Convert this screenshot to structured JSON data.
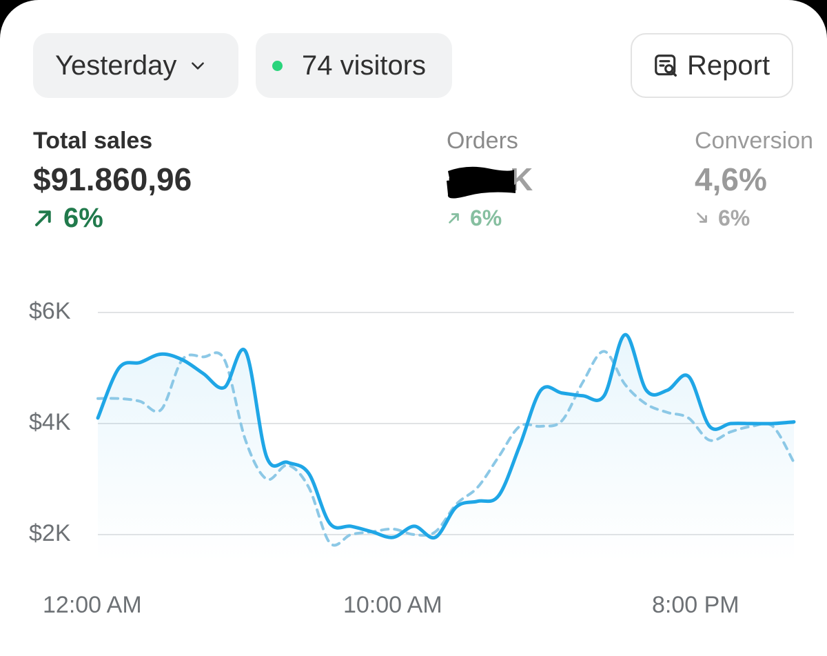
{
  "toolbar": {
    "date_label": "Yesterday",
    "visitors_label": "74 visitors",
    "report_label": "Report"
  },
  "metrics": {
    "total_sales": {
      "label": "Total sales",
      "value": "$91.860,96",
      "delta": "6%",
      "direction": "up"
    },
    "orders": {
      "label": "Orders",
      "value_visible_suffix": "K",
      "value_redacted": true,
      "delta": "6%",
      "direction": "up"
    },
    "conversion": {
      "label": "Conversion",
      "value": "4,6%",
      "delta": "6%",
      "direction": "down"
    }
  },
  "colors": {
    "accent": "#1fa6e6",
    "comparison": "#8cc8e6",
    "positive": "#217a4c",
    "live_dot": "#29d47b"
  },
  "icons": [
    "chevron-down-icon",
    "live-dot-icon",
    "report-icon",
    "arrow-up-right-icon",
    "arrow-down-right-icon"
  ],
  "chart_data": {
    "type": "line",
    "y_tick_labels": [
      "$6K",
      "$4K",
      "$2K"
    ],
    "x_tick_labels": [
      "12:00 AM",
      "10:00 AM",
      "8:00 PM"
    ],
    "ylim": [
      1000,
      6500
    ],
    "grid": true,
    "x_hours": [
      0,
      0.7,
      1.4,
      2.1,
      2.8,
      3.5,
      4.2,
      4.9,
      5.6,
      6.3,
      7.0,
      7.7,
      8.4,
      9.1,
      9.8,
      10.5,
      11.2,
      11.9,
      12.6,
      13.3,
      14.0,
      14.7,
      15.4,
      16.1,
      16.8,
      17.5,
      18.2,
      18.9,
      19.6,
      20.3,
      21.0,
      21.7,
      22.4,
      23.1
    ],
    "series": [
      {
        "values": [
          4100,
          5000,
          5100,
          5250,
          5150,
          4900,
          4650,
          5300,
          3400,
          3300,
          3100,
          2200,
          2150,
          2050,
          1950,
          2150,
          1950,
          2500,
          2600,
          2700,
          3600,
          4600,
          4550,
          4500,
          4500,
          5600,
          4600,
          4600,
          4850,
          3950,
          4000,
          4000,
          4000,
          4030
        ],
        "style": "solid"
      },
      {
        "values": [
          4450,
          4450,
          4400,
          4250,
          5150,
          5200,
          5150,
          3700,
          3000,
          3250,
          2850,
          1850,
          2000,
          2050,
          2100,
          2000,
          2050,
          2550,
          2850,
          3400,
          3950,
          3950,
          4050,
          4750,
          5300,
          4700,
          4350,
          4200,
          4100,
          3700,
          3850,
          3950,
          3950,
          3300
        ],
        "style": "dashed"
      }
    ]
  }
}
